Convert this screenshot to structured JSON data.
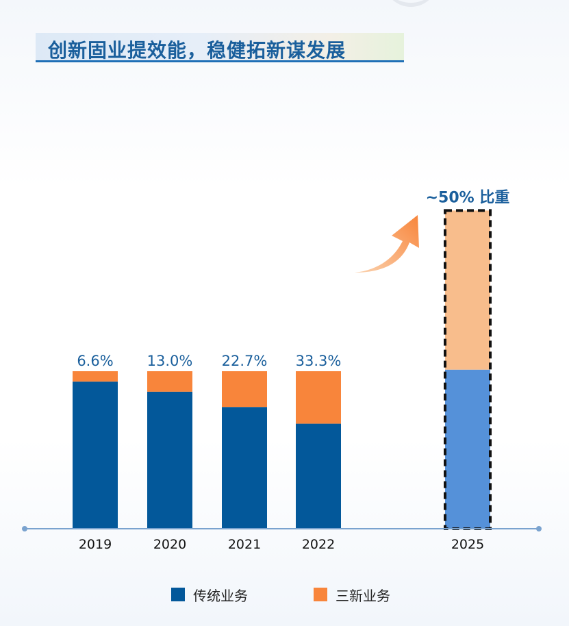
{
  "page": {
    "title": "创新固业提效能，稳健拓新谋发展"
  },
  "colors": {
    "traditional": "#03589a",
    "new": "#f8853b",
    "traditional_target": "#5591d9",
    "new_target": "#f8bd8c",
    "axis": "#7aa3cf",
    "label": "#1a5f9c"
  },
  "chart_data": {
    "type": "bar",
    "stacked": true,
    "categories": [
      "2019",
      "2020",
      "2021",
      "2022",
      "2025"
    ],
    "series": [
      {
        "name": "传统业务",
        "values": [
          93.4,
          87.0,
          77.3,
          66.7,
          50
        ]
      },
      {
        "name": "三新业务",
        "values": [
          6.6,
          13.0,
          22.7,
          33.3,
          50
        ]
      }
    ],
    "totals": [
      100,
      100,
      100,
      100,
      100
    ],
    "total_scale": [
      100,
      100,
      100,
      100,
      202
    ],
    "data_labels": [
      "6.6%",
      "13.0%",
      "22.7%",
      "33.3%",
      ""
    ],
    "target_label": "~50% 比重",
    "target_category": "2025",
    "ylim": [
      0,
      210
    ],
    "grid": false,
    "legend_position": "bottom",
    "title": "",
    "xlabel": "",
    "ylabel": ""
  }
}
